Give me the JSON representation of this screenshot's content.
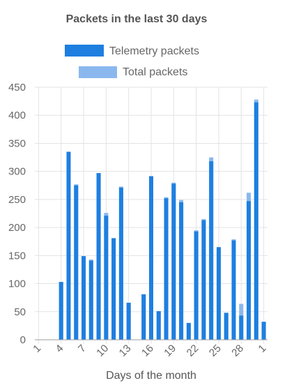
{
  "chart_data": {
    "type": "bar",
    "title": "Packets in the last 30 days",
    "xlabel": "Days of the month",
    "ylabel": "",
    "ylim": [
      0,
      450
    ],
    "yticks": [
      0,
      50,
      100,
      150,
      200,
      250,
      300,
      350,
      400,
      450
    ],
    "grid": true,
    "legend_position": "top",
    "stacked_overlay": true,
    "categories": [
      "1",
      "2",
      "3",
      "4",
      "5",
      "6",
      "7",
      "8",
      "9",
      "10",
      "11",
      "12",
      "13",
      "14",
      "15",
      "16",
      "17",
      "18",
      "19",
      "20",
      "21",
      "22",
      "23",
      "24",
      "25",
      "26",
      "27",
      "28",
      "29",
      "30",
      "1"
    ],
    "x_tick_labels": [
      "1",
      "4",
      "7",
      "10",
      "13",
      "16",
      "19",
      "22",
      "25",
      "28",
      "1"
    ],
    "x_tick_indices": [
      0,
      3,
      6,
      9,
      12,
      15,
      18,
      21,
      24,
      27,
      30
    ],
    "series": [
      {
        "name": "Telemetry packets",
        "color": "#1e7fe0",
        "values": [
          0,
          0,
          0,
          103,
          335,
          275,
          149,
          141,
          297,
          221,
          181,
          271,
          66,
          0,
          81,
          291,
          51,
          252,
          278,
          245,
          30,
          193,
          213,
          318,
          165,
          48,
          177,
          43,
          247,
          423,
          32
        ]
      },
      {
        "name": "Total packets",
        "color": "#8ab8ee",
        "values": [
          0,
          0,
          0,
          103,
          335,
          277,
          149,
          143,
          297,
          226,
          181,
          273,
          66,
          0,
          81,
          292,
          51,
          254,
          280,
          249,
          30,
          195,
          215,
          325,
          165,
          48,
          179,
          64,
          262,
          428,
          32
        ]
      }
    ]
  }
}
